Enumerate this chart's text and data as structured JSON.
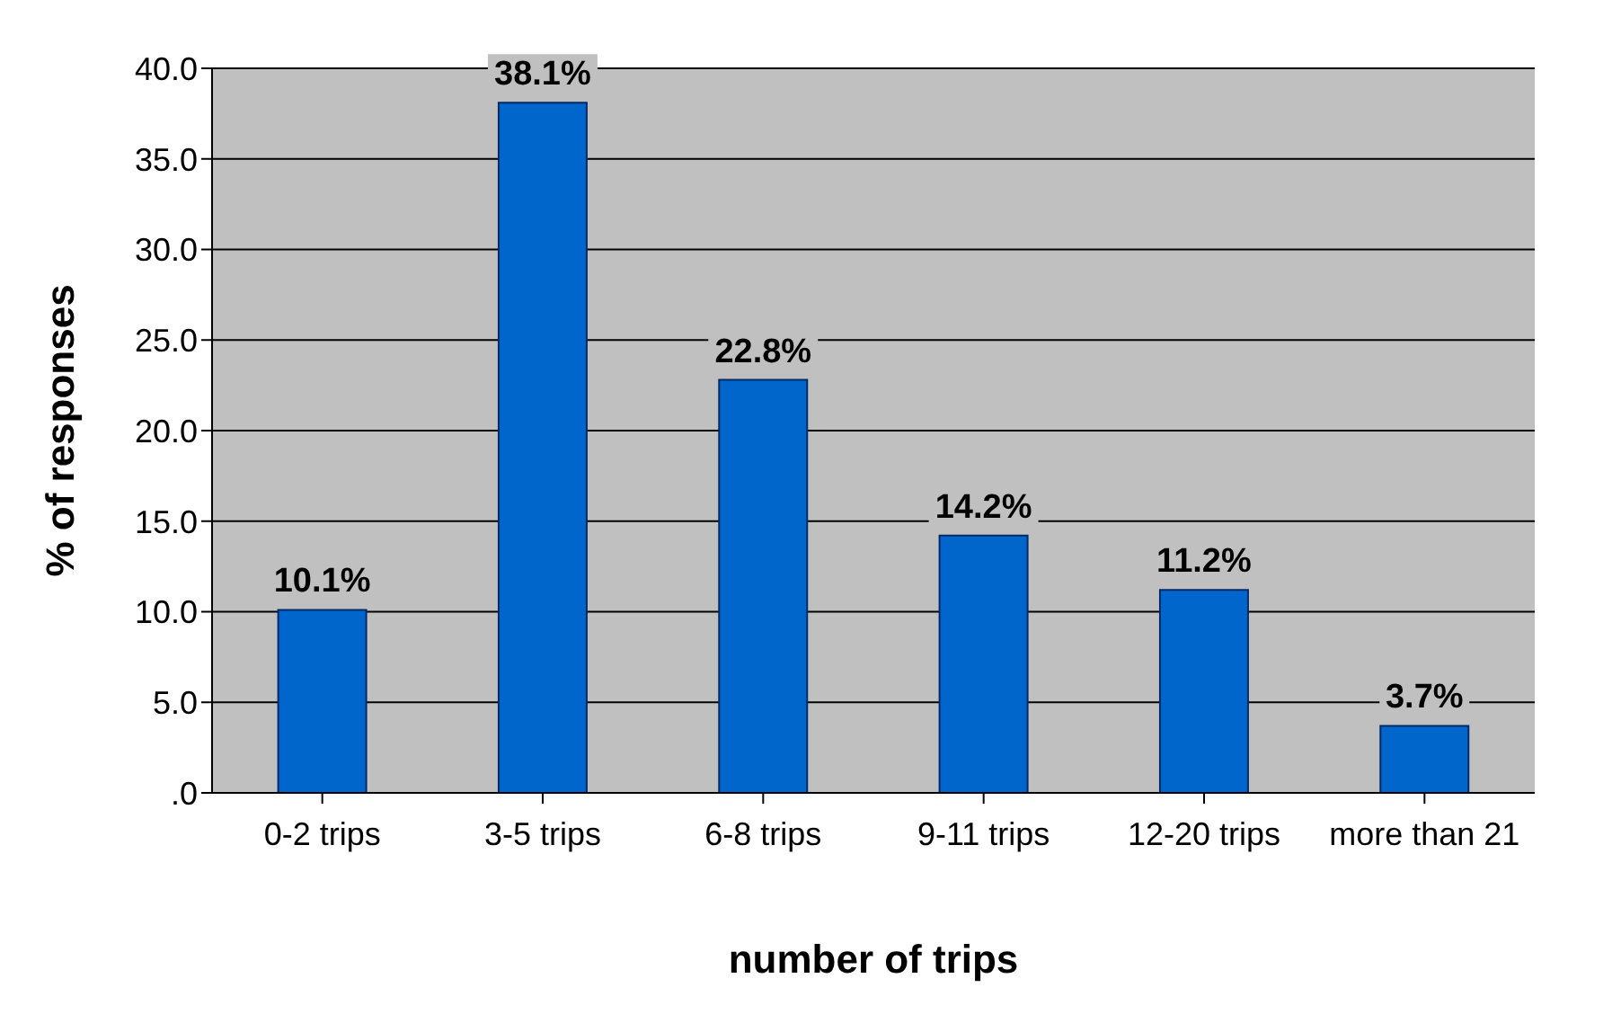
{
  "chart_data": {
    "type": "bar",
    "xlabel": "number of trips",
    "ylabel": "% of responses",
    "categories": [
      "0-2 trips",
      "3-5 trips",
      "6-8 trips",
      "9-11 trips",
      "12-20 trips",
      "more than 21"
    ],
    "values": [
      10.1,
      38.1,
      22.8,
      14.2,
      11.2,
      3.7
    ],
    "value_labels": [
      "10.1%",
      "38.1%",
      "22.8%",
      "14.2%",
      "11.2%",
      "3.7%"
    ],
    "color": "#0066cc",
    "ylim": [
      0,
      40
    ],
    "yticks": [
      {
        "value": 0,
        "label": ".0"
      },
      {
        "value": 5,
        "label": "5.0"
      },
      {
        "value": 10,
        "label": "10.0"
      },
      {
        "value": 15,
        "label": "15.0"
      },
      {
        "value": 20,
        "label": "20.0"
      },
      {
        "value": 25,
        "label": "25.0"
      },
      {
        "value": 30,
        "label": "30.0"
      },
      {
        "value": 35,
        "label": "35.0"
      },
      {
        "value": 40,
        "label": "40.0"
      }
    ],
    "grid": "y"
  }
}
